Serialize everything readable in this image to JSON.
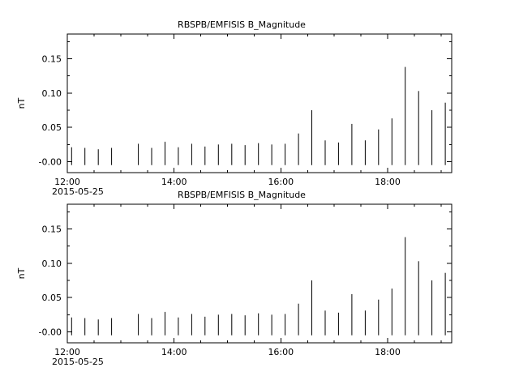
{
  "figure": {
    "background": "#ffffff",
    "foreground": "#000000"
  },
  "chart_data": [
    {
      "type": "bar",
      "style": "impulse-spikes",
      "title": "RBSPB/EMFISIS  B_Magnitude",
      "ylabel": "nT",
      "date_label": "2015-05-25",
      "x_tick_labels": [
        "12:00",
        "14:00",
        "16:00",
        "18:00"
      ],
      "x_tick_hours": [
        0,
        2,
        4,
        6
      ],
      "x_minor_step_hours": 0.5,
      "y_tick_labels": [
        "-0.00",
        "0.05",
        "0.10",
        "0.15"
      ],
      "y_tick_values": [
        0,
        0.05,
        0.1,
        0.15
      ],
      "y_minor_values": [
        0.025,
        0.075,
        0.125,
        0.175
      ],
      "xlim_hours": [
        0,
        7.2
      ],
      "ylim": [
        -0.016,
        0.186
      ],
      "grid": false,
      "legend": "none",
      "baseline": -0.005,
      "line_color": "#000000",
      "axis_color": "#000000",
      "x_hours": [
        0.08,
        0.33,
        0.58,
        0.83,
        1.33,
        1.58,
        1.83,
        2.08,
        2.33,
        2.58,
        2.83,
        3.08,
        3.33,
        3.58,
        3.83,
        4.08,
        4.33,
        4.58,
        4.83,
        5.08,
        5.33,
        5.58,
        5.83,
        6.08,
        6.33,
        6.58,
        6.83,
        7.08
      ],
      "values": [
        0.021,
        0.02,
        0.018,
        0.02,
        0.026,
        0.02,
        0.029,
        0.021,
        0.026,
        0.022,
        0.025,
        0.026,
        0.024,
        0.027,
        0.025,
        0.026,
        0.041,
        0.075,
        0.031,
        0.028,
        0.055,
        0.031,
        0.047,
        0.063,
        0.138,
        0.103,
        0.075,
        0.086
      ]
    },
    {
      "type": "bar",
      "style": "impulse-spikes",
      "title": "RBSPB/EMFISIS  B_Magnitude",
      "ylabel": "nT",
      "date_label": "2015-05-25",
      "x_tick_labels": [
        "12:00",
        "14:00",
        "16:00",
        "18:00"
      ],
      "x_tick_hours": [
        0,
        2,
        4,
        6
      ],
      "x_minor_step_hours": 0.5,
      "y_tick_labels": [
        "-0.00",
        "0.05",
        "0.10",
        "0.15"
      ],
      "y_tick_values": [
        0,
        0.05,
        0.1,
        0.15
      ],
      "y_minor_values": [
        0.025,
        0.075,
        0.125,
        0.175
      ],
      "xlim_hours": [
        0,
        7.2
      ],
      "ylim": [
        -0.016,
        0.186
      ],
      "grid": false,
      "legend": "none",
      "baseline": -0.005,
      "line_color": "#000000",
      "axis_color": "#000000",
      "x_hours": [
        0.08,
        0.33,
        0.58,
        0.83,
        1.33,
        1.58,
        1.83,
        2.08,
        2.33,
        2.58,
        2.83,
        3.08,
        3.33,
        3.58,
        3.83,
        4.08,
        4.33,
        4.58,
        4.83,
        5.08,
        5.33,
        5.58,
        5.83,
        6.08,
        6.33,
        6.58,
        6.83,
        7.08
      ],
      "values": [
        0.021,
        0.02,
        0.018,
        0.02,
        0.026,
        0.02,
        0.029,
        0.021,
        0.026,
        0.022,
        0.025,
        0.026,
        0.024,
        0.027,
        0.025,
        0.026,
        0.041,
        0.075,
        0.031,
        0.028,
        0.055,
        0.031,
        0.047,
        0.063,
        0.138,
        0.103,
        0.075,
        0.086
      ]
    }
  ]
}
